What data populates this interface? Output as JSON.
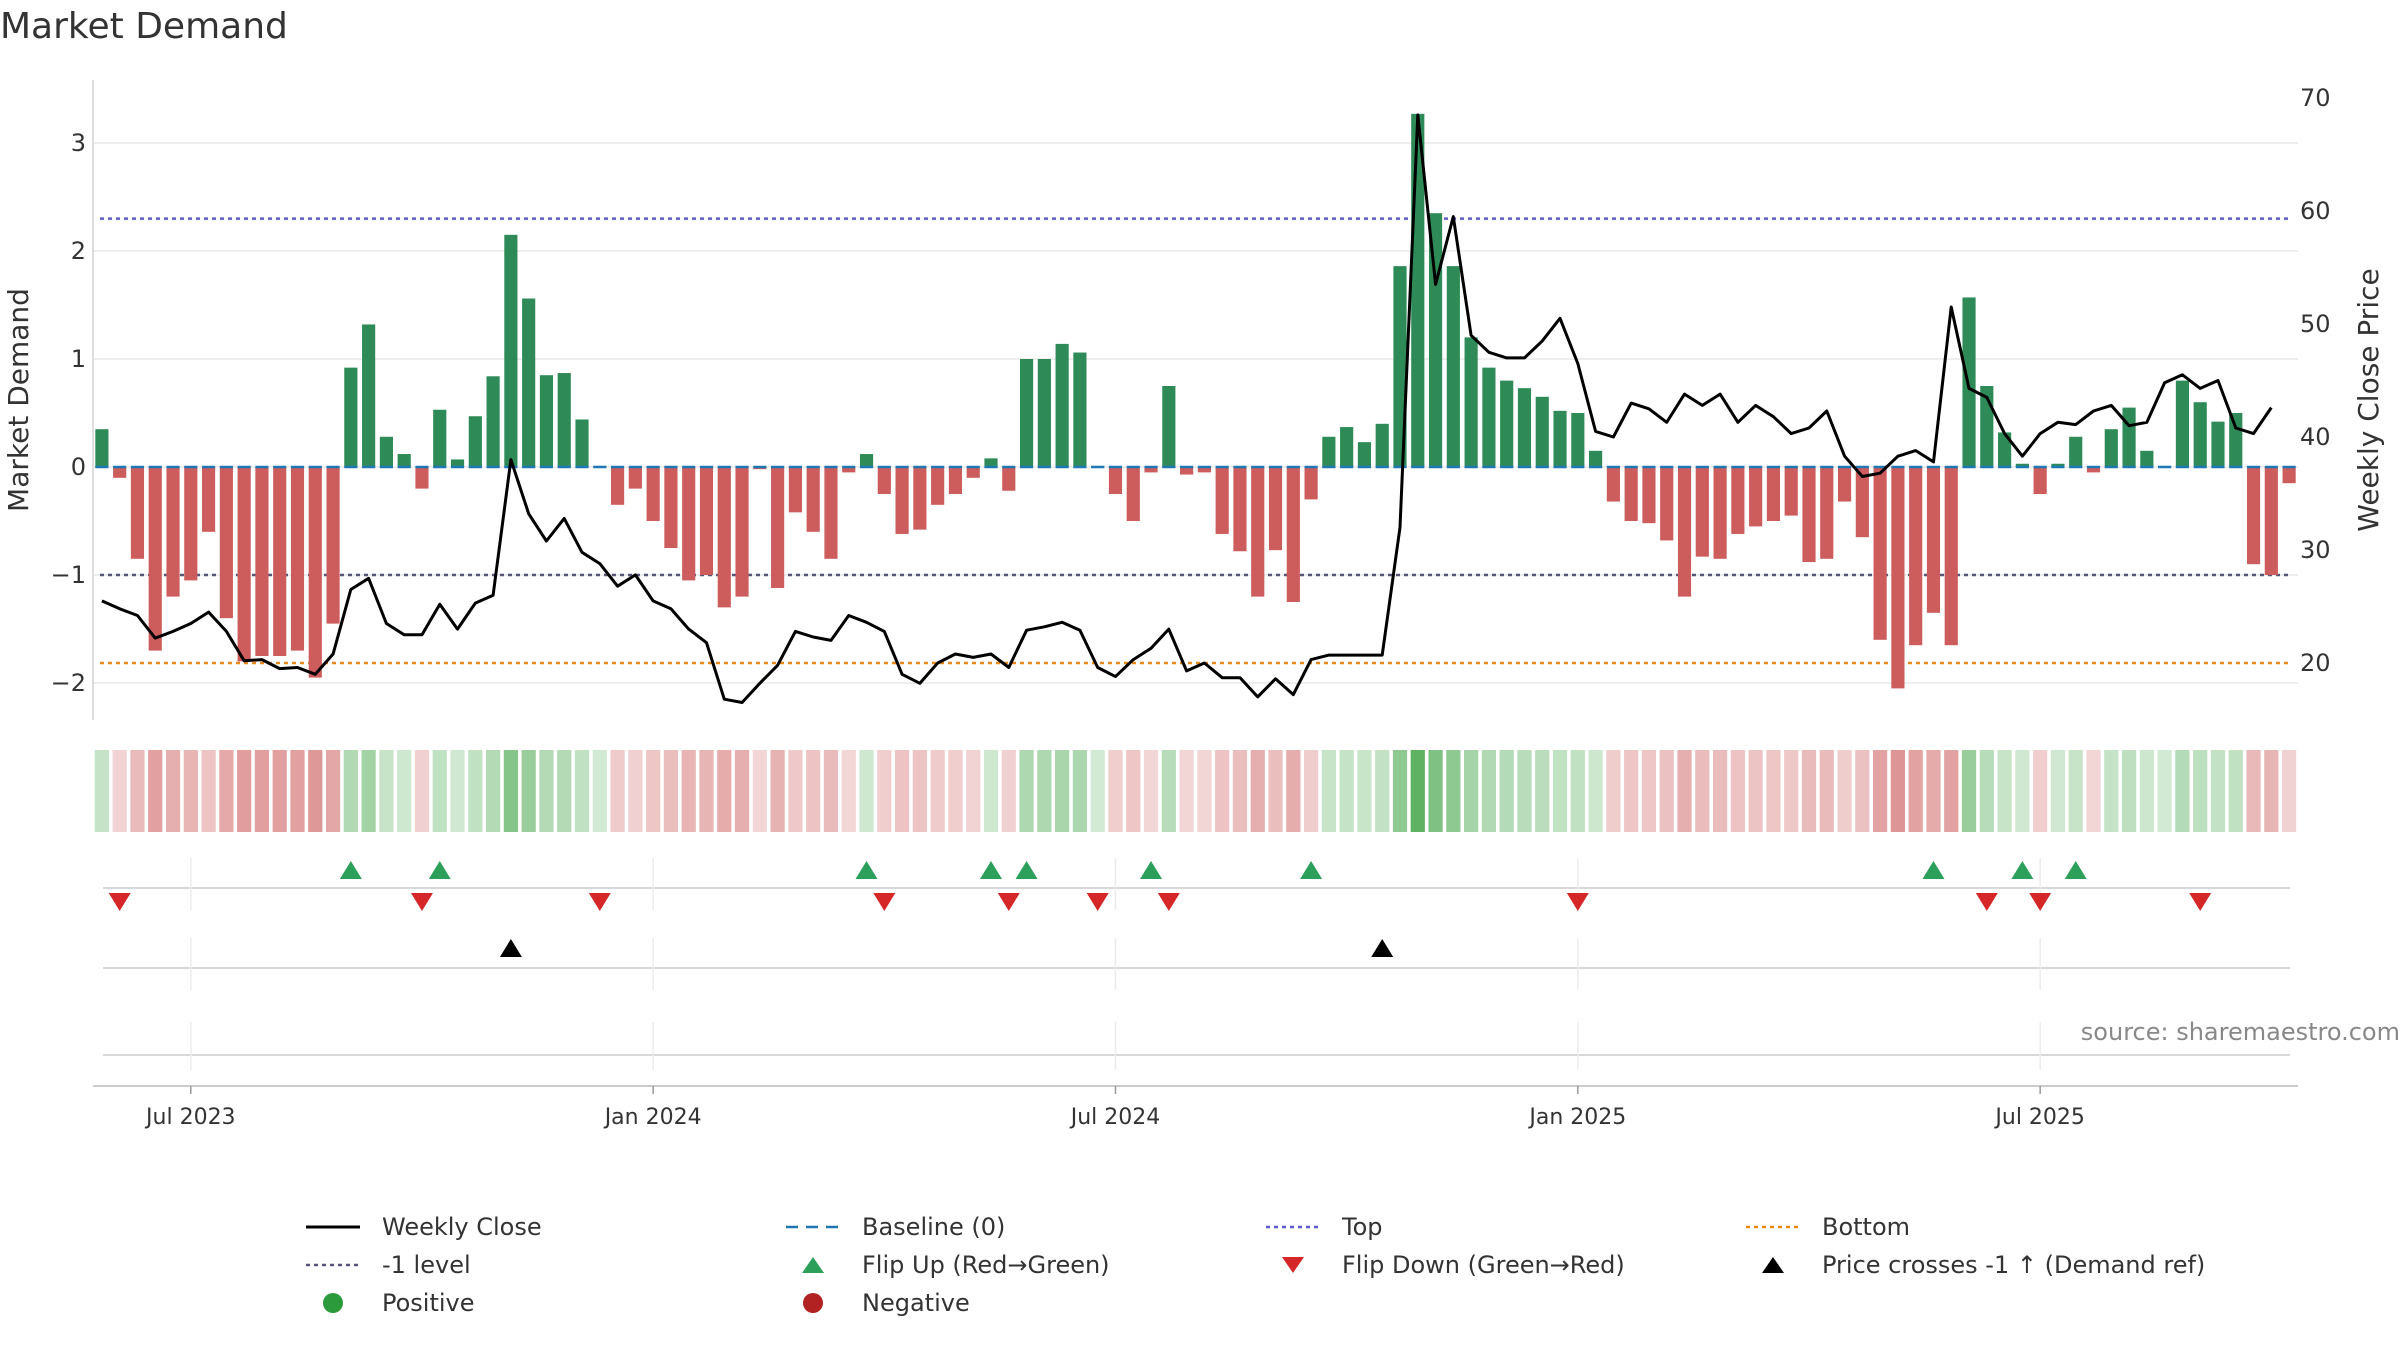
{
  "title": "Market Demand",
  "source": "source: sharemaestro.com",
  "chart_data": {
    "type": "bar",
    "title": "Market Demand",
    "ylabel_left": "Market Demand",
    "ylabel_right": "Weekly Close Price",
    "ylim_left": [
      -2.35,
      3.5
    ],
    "ylim_right": [
      14,
      71
    ],
    "yticks_left": [
      -2,
      -1,
      0,
      1,
      2,
      3
    ],
    "yticks_right": [
      20,
      30,
      40,
      50,
      60,
      70
    ],
    "reference_lines": {
      "baseline": 0,
      "top": 2.3,
      "minus1": -1,
      "bottom_price": 20
    },
    "x_ticks": [
      {
        "label": "Jul 2023",
        "week": 5
      },
      {
        "label": "Jan 2024",
        "week": 31
      },
      {
        "label": "Jul 2024",
        "week": 57
      },
      {
        "label": "Jan 2025",
        "week": 83
      },
      {
        "label": "Jul 2025",
        "week": 109
      }
    ],
    "demand": [
      0.35,
      -0.1,
      -0.85,
      -1.7,
      -1.2,
      -1.05,
      -0.6,
      -1.4,
      -1.8,
      -1.75,
      -1.75,
      -1.7,
      -1.95,
      -1.45,
      0.92,
      1.32,
      0.28,
      0.12,
      -0.2,
      0.53,
      0.07,
      0.47,
      0.84,
      2.15,
      1.56,
      0.85,
      0.87,
      0.44,
      0.01,
      -0.35,
      -0.2,
      -0.5,
      -0.75,
      -1.05,
      -1.0,
      -1.3,
      -1.2,
      -0.02,
      -1.12,
      -0.42,
      -0.6,
      -0.85,
      -0.05,
      0.12,
      -0.25,
      -0.62,
      -0.58,
      -0.35,
      -0.25,
      -0.1,
      0.08,
      -0.22,
      1.0,
      1.0,
      1.14,
      1.06,
      0.01,
      -0.25,
      -0.5,
      -0.05,
      0.75,
      -0.07,
      -0.05,
      -0.62,
      -0.78,
      -1.2,
      -0.77,
      -1.25,
      -0.3,
      0.28,
      0.37,
      0.23,
      0.4,
      1.86,
      3.27,
      2.35,
      1.86,
      1.2,
      0.92,
      0.8,
      0.73,
      0.65,
      0.52,
      0.5,
      0.15,
      -0.32,
      -0.5,
      -0.52,
      -0.68,
      -1.2,
      -0.83,
      -0.85,
      -0.62,
      -0.55,
      -0.5,
      -0.45,
      -0.88,
      -0.85,
      -0.32,
      -0.65,
      -1.6,
      -2.05,
      -1.65,
      -1.35,
      -1.65,
      1.57,
      0.75,
      0.32,
      0.03,
      -0.25,
      0.03,
      0.28,
      -0.05,
      0.35,
      0.55,
      0.15,
      0.01,
      0.8,
      0.6,
      0.42,
      0.5,
      -0.9,
      -1.0,
      -0.15
    ],
    "price": [
      25.5,
      24.8,
      24.2,
      22.2,
      22.8,
      23.5,
      24.5,
      22.8,
      20.2,
      20.3,
      19.5,
      19.6,
      19.0,
      20.8,
      26.5,
      27.5,
      23.5,
      22.5,
      22.5,
      25.2,
      23.0,
      25.3,
      26.0,
      38.0,
      33.2,
      30.8,
      32.8,
      29.8,
      28.8,
      26.8,
      27.8,
      25.5,
      24.8,
      23.0,
      21.8,
      16.8,
      16.5,
      18.2,
      19.8,
      22.8,
      22.3,
      22.0,
      24.2,
      23.6,
      22.8,
      19.0,
      18.2,
      20.0,
      20.8,
      20.5,
      20.8,
      19.6,
      22.9,
      23.2,
      23.6,
      22.9,
      19.6,
      18.8,
      20.3,
      21.3,
      23.0,
      19.3,
      20.0,
      18.7,
      18.7,
      17.0,
      18.6,
      17.2,
      20.3,
      20.7,
      20.7,
      20.7,
      20.7,
      32.0,
      68.5,
      53.5,
      59.5,
      49.0,
      47.5,
      47.0,
      47.0,
      48.5,
      50.5,
      46.5,
      40.5,
      40.0,
      43.0,
      42.5,
      41.3,
      43.8,
      42.8,
      43.8,
      41.3,
      42.8,
      41.8,
      40.3,
      40.8,
      42.3,
      38.3,
      36.5,
      36.8,
      38.3,
      38.8,
      37.8,
      51.5,
      44.3,
      43.5,
      40.3,
      38.3,
      40.3,
      41.3,
      41.1,
      42.3,
      42.8,
      41.0,
      41.3,
      44.8,
      45.5,
      44.3,
      45.0,
      40.8,
      40.3,
      42.6
    ],
    "flip_up_weeks": [
      14,
      19,
      43,
      50,
      52,
      59,
      68,
      103,
      108,
      111
    ],
    "flip_down_weeks": [
      1,
      18,
      28,
      44,
      51,
      56,
      60,
      83,
      106,
      109,
      118
    ],
    "price_cross_weeks": [
      23,
      72
    ]
  },
  "legend": [
    {
      "label": "Weekly Close",
      "symbol": "line-solid",
      "color": "#000000"
    },
    {
      "label": "Baseline (0)",
      "symbol": "line-dashed",
      "color": "#1f77b4"
    },
    {
      "label": "Top",
      "symbol": "line-dotted",
      "color": "#5b5bcf"
    },
    {
      "label": "Bottom",
      "symbol": "line-dotted",
      "color": "#e8891c"
    },
    {
      "label": "-1 level",
      "symbol": "line-dotted",
      "color": "#555577"
    },
    {
      "label": "Flip Up (Red→Green)",
      "symbol": "triangle-up",
      "color": "#2ca05a"
    },
    {
      "label": "Flip Down (Green→Red)",
      "symbol": "triangle-down",
      "color": "#d62728"
    },
    {
      "label": "Price crosses -1 ↑ (Demand ref)",
      "symbol": "triangle-up",
      "color": "#000000"
    },
    {
      "label": "Positive",
      "symbol": "dot",
      "color": "#2a9a3a"
    },
    {
      "label": "Negative",
      "symbol": "dot",
      "color": "#b22222"
    }
  ],
  "colors": {
    "positive_bar": "#2e8b57",
    "negative_bar": "#cd5c5c",
    "price_line": "#000000",
    "baseline": "#1f77b4",
    "top_line": "#5b5bcf",
    "minus1_line": "#555577",
    "bottom_line": "#e8891c"
  }
}
